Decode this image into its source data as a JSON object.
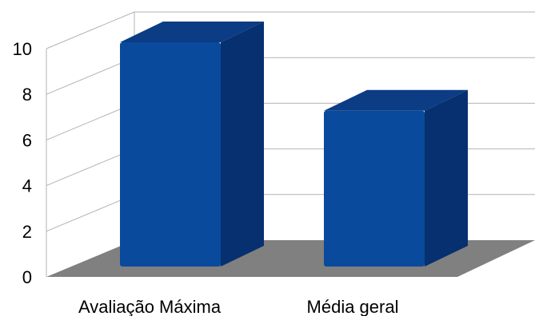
{
  "chart_data": {
    "type": "bar",
    "style": "3d",
    "categories": [
      "Avaliação Máxima",
      "Média geral"
    ],
    "values": [
      10,
      7
    ],
    "ylim": [
      0,
      10
    ],
    "yticks": [
      0,
      2,
      4,
      6,
      8,
      10
    ],
    "grid": true,
    "legend": "none",
    "colors": {
      "bar_front": "#0a4a9c",
      "bar_side": "#063070",
      "bar_top": "#0b3c84",
      "floor": "#808080",
      "grid": "#b3b3b3"
    }
  }
}
